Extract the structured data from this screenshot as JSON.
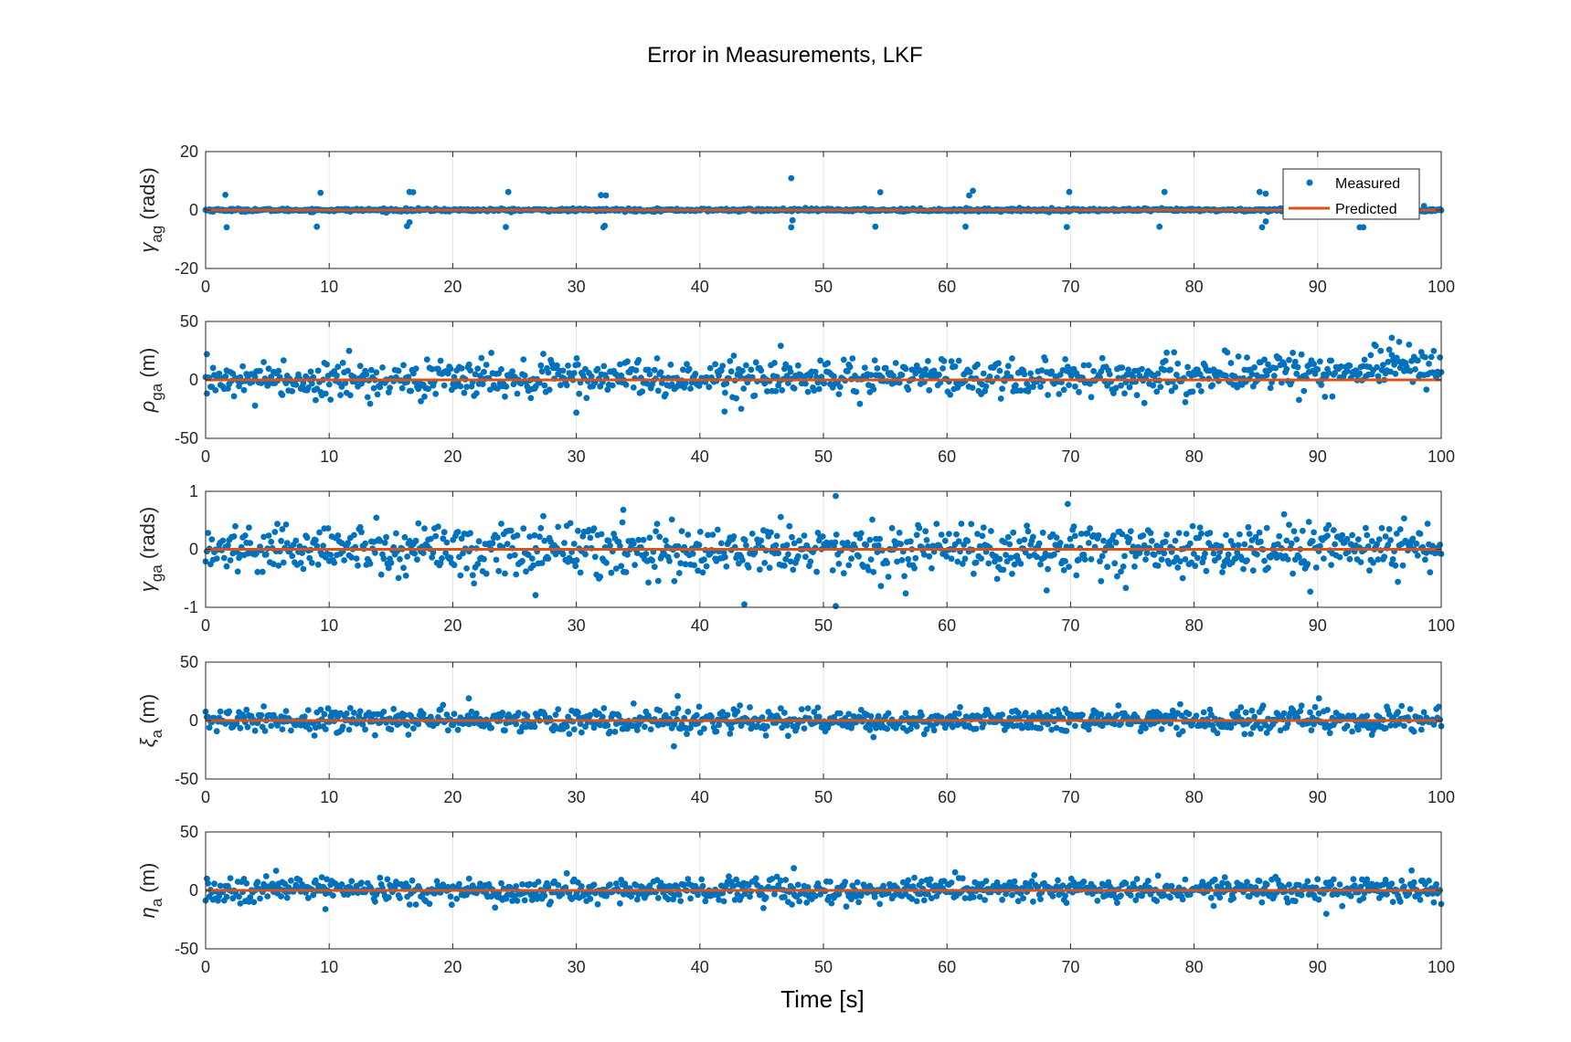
{
  "title": "Error in Measurements, LKF",
  "xlabel": "Time [s]",
  "colors": {
    "measured": "#0072BD",
    "predicted": "#D95319",
    "grid": "#e6e6e6",
    "axis": "#262626"
  },
  "legend": {
    "measured": "Measured",
    "predicted": "Predicted",
    "placement": "top-right of first subplot"
  },
  "chart_data": [
    {
      "type": "scatter",
      "ylabel": {
        "symbol": "γ",
        "sub": "ag",
        "unit": "(rads)"
      },
      "xlim": [
        0,
        100
      ],
      "ylim": [
        -20,
        20
      ],
      "xticks": [
        0,
        10,
        20,
        30,
        40,
        50,
        60,
        70,
        80,
        90,
        100
      ],
      "yticks": [
        20,
        0,
        -20
      ],
      "grid": true,
      "noise_sd": 0.25,
      "spikes": [
        [
          1.6,
          5.2
        ],
        [
          1.7,
          -5.9
        ],
        [
          9.0,
          -5.7
        ],
        [
          9.3,
          5.9
        ],
        [
          16.3,
          -5.5
        ],
        [
          16.5,
          6.2
        ],
        [
          16.8,
          6.1
        ],
        [
          16.5,
          -4.2
        ],
        [
          24.3,
          -5.8
        ],
        [
          24.5,
          6.2
        ],
        [
          32.0,
          5.1
        ],
        [
          32.2,
          -5.9
        ],
        [
          32.4,
          5.0
        ],
        [
          32.3,
          -5.4
        ],
        [
          47.4,
          10.9
        ],
        [
          47.4,
          -5.9
        ],
        [
          47.5,
          -3.5
        ],
        [
          54.2,
          -5.7
        ],
        [
          54.6,
          6.1
        ],
        [
          61.5,
          -5.7
        ],
        [
          61.8,
          5.0
        ],
        [
          62.1,
          6.6
        ],
        [
          69.7,
          -5.8
        ],
        [
          69.9,
          6.2
        ],
        [
          77.2,
          -5.7
        ],
        [
          77.6,
          6.2
        ],
        [
          85.3,
          6.2
        ],
        [
          85.5,
          -5.9
        ],
        [
          85.8,
          5.6
        ],
        [
          85.8,
          -3.9
        ],
        [
          93.4,
          -5.9
        ],
        [
          93.7,
          -5.9
        ],
        [
          91.9,
          0.8
        ],
        [
          98.6,
          1.4
        ]
      ],
      "series": [
        {
          "name": "Measured",
          "x_range": [
            0,
            100
          ],
          "n": 1000
        },
        {
          "name": "Predicted",
          "x": [
            0,
            100
          ],
          "y": [
            0,
            0
          ]
        }
      ]
    },
    {
      "type": "scatter",
      "ylabel": {
        "symbol": "ρ",
        "sub": "ga",
        "unit": "(m)"
      },
      "xlim": [
        0,
        100
      ],
      "ylim": [
        -50,
        50
      ],
      "xticks": [
        0,
        10,
        20,
        30,
        40,
        50,
        60,
        70,
        80,
        90,
        100
      ],
      "yticks": [
        50,
        0,
        -50
      ],
      "grid": true,
      "noise_sd": 8,
      "trend": [
        [
          0,
          0
        ],
        [
          80,
          3
        ],
        [
          100,
          14
        ]
      ],
      "spikes": [
        [
          0.1,
          22
        ],
        [
          96,
          36
        ],
        [
          30,
          -28
        ],
        [
          42,
          -27
        ],
        [
          4,
          -22
        ]
      ],
      "series": [
        {
          "name": "Measured",
          "x_range": [
            0,
            100
          ],
          "n": 1000
        },
        {
          "name": "Predicted",
          "x": [
            0,
            100
          ],
          "y": [
            0,
            0
          ]
        }
      ]
    },
    {
      "type": "scatter",
      "ylabel": {
        "symbol": "γ",
        "sub": "ga",
        "unit": "(rads)"
      },
      "xlim": [
        0,
        100
      ],
      "ylim": [
        -1,
        1
      ],
      "xticks": [
        0,
        10,
        20,
        30,
        40,
        50,
        60,
        70,
        80,
        90,
        100
      ],
      "yticks": [
        1,
        0,
        -1
      ],
      "grid": true,
      "noise_sd": 0.22,
      "spikes": [
        [
          51.0,
          0.92
        ],
        [
          51.0,
          -0.98
        ],
        [
          43.6,
          -0.95
        ],
        [
          89.4,
          -0.73
        ],
        [
          26.7,
          -0.79
        ],
        [
          33.8,
          0.68
        ]
      ],
      "series": [
        {
          "name": "Measured",
          "x_range": [
            0,
            100
          ],
          "n": 1000
        },
        {
          "name": "Predicted",
          "x": [
            0,
            100
          ],
          "y": [
            0,
            0
          ]
        }
      ]
    },
    {
      "type": "scatter",
      "ylabel": {
        "symbol": "ξ",
        "sub": "a",
        "unit": "(m)"
      },
      "xlim": [
        0,
        100
      ],
      "ylim": [
        -50,
        50
      ],
      "xticks": [
        0,
        10,
        20,
        30,
        40,
        50,
        60,
        70,
        80,
        90,
        100
      ],
      "yticks": [
        50,
        0,
        -50
      ],
      "grid": true,
      "noise_sd": 5,
      "spikes": [
        [
          38.2,
          21
        ],
        [
          37.9,
          -22
        ],
        [
          21.3,
          19
        ],
        [
          90.1,
          19
        ]
      ],
      "series": [
        {
          "name": "Measured",
          "x_range": [
            0,
            100
          ],
          "n": 1000
        },
        {
          "name": "Predicted",
          "x": [
            0,
            100
          ],
          "y": [
            0,
            0
          ]
        }
      ]
    },
    {
      "type": "scatter",
      "ylabel": {
        "symbol": "η",
        "sub": "a",
        "unit": "(m)"
      },
      "xlim": [
        0,
        100
      ],
      "ylim": [
        -50,
        50
      ],
      "xticks": [
        0,
        10,
        20,
        30,
        40,
        50,
        60,
        70,
        80,
        90,
        100
      ],
      "yticks": [
        50,
        0,
        -50
      ],
      "grid": true,
      "noise_sd": 5,
      "spikes": [
        [
          47.6,
          19
        ],
        [
          90.7,
          -20
        ],
        [
          97.6,
          17
        ],
        [
          9.7,
          -16
        ]
      ],
      "series": [
        {
          "name": "Measured",
          "x_range": [
            0,
            100
          ],
          "n": 1000
        },
        {
          "name": "Predicted",
          "x": [
            0,
            100
          ],
          "y": [
            0,
            0
          ]
        }
      ]
    }
  ]
}
